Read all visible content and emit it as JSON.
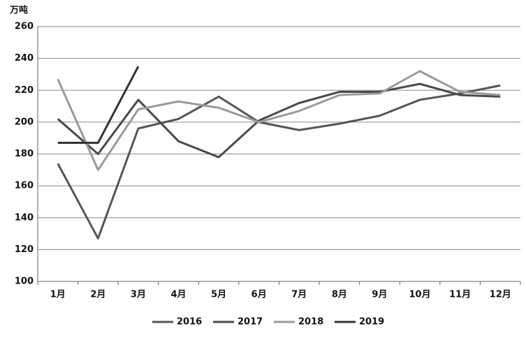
{
  "chart_data": {
    "type": "line",
    "y_label": "万吨",
    "categories": [
      "1月",
      "2月",
      "3月",
      "4月",
      "5月",
      "6月",
      "7月",
      "8月",
      "9月",
      "10月",
      "11月",
      "12月"
    ],
    "series": [
      {
        "name": "2016",
        "color": "#555555",
        "values": [
          174,
          127,
          196,
          202,
          216,
          200,
          195,
          199,
          204,
          214,
          218,
          223
        ]
      },
      {
        "name": "2017",
        "color": "#4a4a4a",
        "values": [
          202,
          180,
          214,
          188,
          178,
          201,
          212,
          219,
          219,
          224,
          217,
          216
        ]
      },
      {
        "name": "2018",
        "color": "#9a9a9a",
        "values": [
          227,
          170,
          208,
          213,
          209,
          200,
          207,
          217,
          218,
          232,
          219,
          217
        ]
      },
      {
        "name": "2019",
        "color": "#333333",
        "values": [
          187,
          187,
          235,
          null,
          null,
          null,
          null,
          null,
          null,
          null,
          null,
          null
        ]
      }
    ],
    "ylim": [
      100,
      260
    ],
    "yticks": [
      100,
      120,
      140,
      160,
      180,
      200,
      220,
      240,
      260
    ],
    "grid": true,
    "legend": "bottom"
  }
}
